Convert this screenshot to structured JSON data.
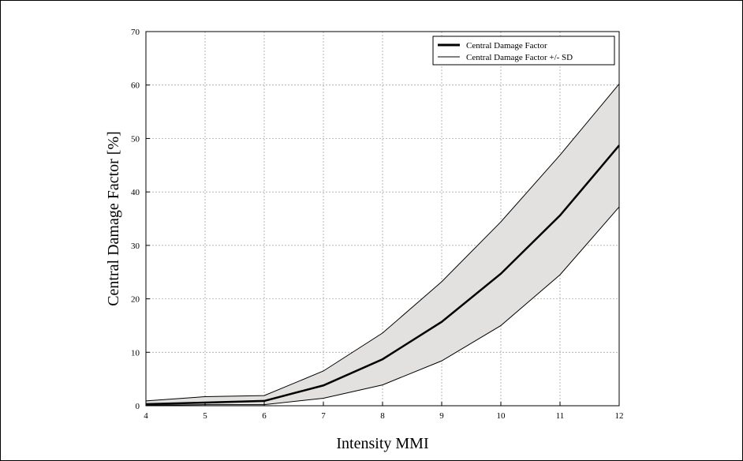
{
  "chart_data": {
    "type": "area",
    "title": "",
    "xlabel": "Intensity MMI",
    "ylabel": "Central Damage Factor [%]",
    "xlim": [
      4,
      12
    ],
    "ylim": [
      0,
      70
    ],
    "xticks": [
      4,
      5,
      6,
      7,
      8,
      9,
      10,
      11,
      12
    ],
    "yticks": [
      0,
      10,
      20,
      30,
      40,
      50,
      60,
      70
    ],
    "grid": true,
    "legend_position": "top-right",
    "x": [
      4,
      5,
      6,
      7,
      8,
      9,
      10,
      11,
      12
    ],
    "series": [
      {
        "name": "Central Damage Factor",
        "values": [
          0.3,
          0.6,
          0.9,
          3.8,
          8.7,
          15.7,
          24.7,
          35.6,
          48.7
        ]
      },
      {
        "name": "Central Damage Factor +/- SD",
        "upper": [
          0.9,
          1.7,
          1.9,
          6.5,
          13.6,
          23.2,
          34.4,
          46.9,
          60.2
        ],
        "lower": [
          0.1,
          0.2,
          0.2,
          1.4,
          3.9,
          8.4,
          15.0,
          24.5,
          37.2
        ]
      }
    ],
    "colors": {
      "band_fill": "#e3e1df",
      "line": "#000000",
      "grid": "#999999"
    }
  }
}
